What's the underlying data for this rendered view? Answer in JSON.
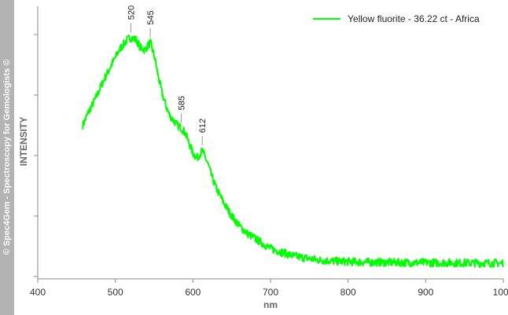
{
  "watermark": "© Spec4Gem - Spectroscopy for Gemologists ©",
  "chart_data": {
    "type": "line",
    "title": "",
    "xlabel": "nm",
    "ylabel": "INTENSITY",
    "xlim": [
      400,
      1000
    ],
    "ylim": [
      0,
      1
    ],
    "x_ticks": [
      400,
      500,
      600,
      700,
      800,
      900,
      1000
    ],
    "y_tick_count": 5,
    "grid": false,
    "legend_position": "top-right",
    "series": [
      {
        "name": "Yellow fluorite - 36.22 ct - Africa",
        "color": "#00ff00",
        "x": [
          458,
          465,
          475,
          485,
          495,
          505,
          515,
          520,
          527,
          532,
          538,
          545,
          550,
          555,
          560,
          565,
          570,
          575,
          580,
          585,
          590,
          595,
          600,
          605,
          610,
          612,
          615,
          620,
          625,
          630,
          640,
          650,
          660,
          670,
          680,
          690,
          700,
          710,
          720,
          730,
          740,
          750,
          760,
          780,
          800,
          820,
          850,
          880,
          900,
          950,
          1000
        ],
        "y": [
          0.57,
          0.62,
          0.68,
          0.75,
          0.81,
          0.87,
          0.91,
          0.92,
          0.91,
          0.88,
          0.87,
          0.9,
          0.85,
          0.77,
          0.7,
          0.65,
          0.61,
          0.59,
          0.57,
          0.56,
          0.54,
          0.5,
          0.46,
          0.44,
          0.46,
          0.47,
          0.45,
          0.41,
          0.36,
          0.32,
          0.26,
          0.21,
          0.17,
          0.14,
          0.12,
          0.1,
          0.08,
          0.07,
          0.06,
          0.05,
          0.045,
          0.04,
          0.035,
          0.03,
          0.028,
          0.026,
          0.025,
          0.024,
          0.024,
          0.023,
          0.022
        ]
      }
    ],
    "annotations": [
      {
        "label": "520",
        "x": 520
      },
      {
        "label": "545",
        "x": 545
      },
      {
        "label": "585",
        "x": 585
      },
      {
        "label": "612",
        "x": 612
      }
    ]
  }
}
